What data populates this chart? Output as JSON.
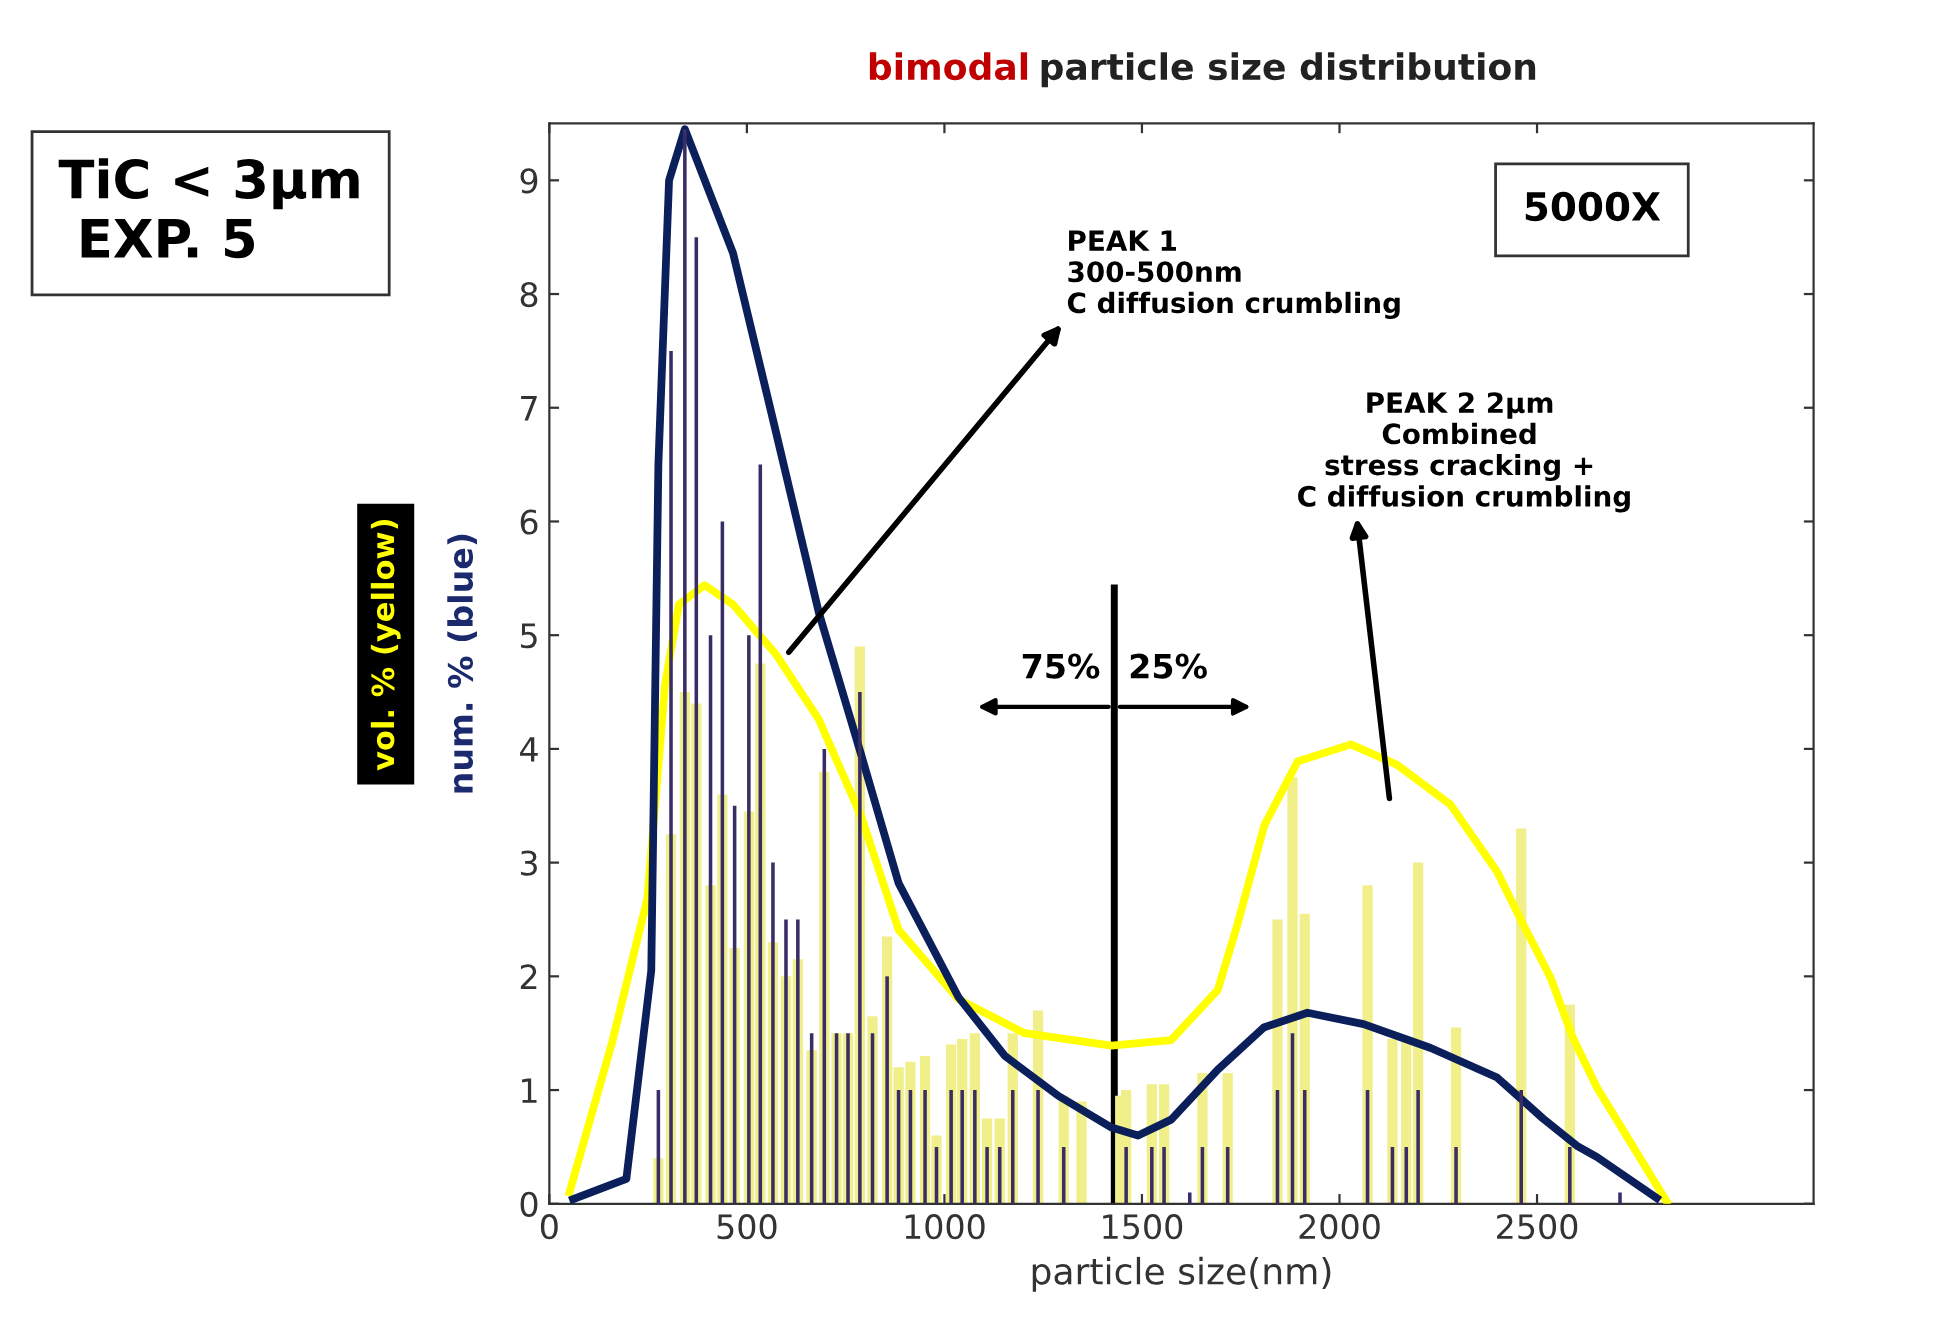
{
  "chart_data": {
    "type": "bar",
    "title": "bimodal particle size distribution",
    "xlabel": "particle size(nm)",
    "ylabel": "num. % (blue)",
    "x": [
      276,
      308,
      343,
      372,
      408,
      438,
      469,
      505,
      534,
      566,
      599,
      629,
      664,
      696,
      727,
      756,
      786,
      818,
      855,
      884,
      914,
      951,
      980,
      1017,
      1045,
      1077,
      1108,
      1140,
      1173,
      1237,
      1302,
      1347,
      1445,
      1460,
      1525,
      1556,
      1621,
      1653,
      1717,
      1843,
      1881,
      1912,
      2071,
      2134,
      2169,
      2199,
      2295,
      2460,
      2583,
      2710
    ],
    "series": [
      {
        "color": "#f1ef8a",
        "values": [
          0.4,
          3.25,
          4.5,
          4.4,
          2.8,
          3.6,
          2.25,
          3.45,
          4.75,
          2.3,
          2.0,
          2.15,
          1.35,
          3.8,
          1.5,
          1.5,
          4.9,
          1.65,
          2.35,
          1.2,
          1.25,
          1.3,
          0.6,
          1.4,
          1.45,
          1.5,
          0.75,
          0.75,
          1.5,
          1.7,
          0.95,
          0.9,
          0.95,
          1.0,
          1.05,
          1.05,
          null,
          1.15,
          1.15,
          2.5,
          3.75,
          2.55,
          2.8,
          1.45,
          1.45,
          3.0,
          1.55,
          3.3,
          1.75,
          null
        ]
      },
      {
        "color": "#3a2d66",
        "values": [
          1.0,
          7.5,
          9.45,
          8.5,
          5.0,
          6.0,
          3.5,
          5.0,
          6.5,
          3.0,
          2.5,
          2.5,
          1.5,
          4.0,
          1.5,
          1.5,
          4.5,
          1.5,
          2.0,
          1.0,
          1.0,
          1.0,
          0.5,
          1.0,
          1.0,
          1.0,
          0.5,
          0.5,
          1.0,
          1.0,
          0.5,
          null,
          null,
          0.5,
          0.5,
          0.5,
          0.1,
          0.5,
          0.5,
          1.0,
          1.5,
          1.0,
          1.0,
          0.5,
          0.5,
          1.0,
          0.5,
          1.0,
          0.5,
          0.1
        ]
      },
      {
        "type": "line",
        "color": "#ffff00",
        "x": [
          51,
          159,
          248,
          293,
          328,
          393,
          465,
          574,
          682,
          790,
          884,
          1035,
          1203,
          1423,
          1574,
          1692,
          1742,
          1810,
          1894,
          2029,
          2146,
          2281,
          2399,
          2466,
          2534,
          2592,
          2652,
          2828
        ],
        "values": [
          0.1,
          1.42,
          2.68,
          4.57,
          5.27,
          5.44,
          5.27,
          4.83,
          4.26,
          3.4,
          2.41,
          1.8,
          1.5,
          1.39,
          1.44,
          1.88,
          2.46,
          3.33,
          3.89,
          4.04,
          3.86,
          3.51,
          2.92,
          2.45,
          1.99,
          1.45,
          1.02,
          0.02
        ]
      },
      {
        "type": "line",
        "color": "#0b1f5b",
        "x": [
          60,
          195,
          258,
          276,
          303,
          343,
          465,
          574,
          682,
          790,
          884,
          1035,
          1153,
          1288,
          1423,
          1490,
          1574,
          1692,
          1808,
          1919,
          2061,
          2231,
          2399,
          2515,
          2601,
          2652,
          2803
        ],
        "values": [
          0.04,
          0.22,
          2.05,
          6.5,
          9.0,
          9.45,
          8.36,
          6.78,
          5.2,
          3.94,
          2.82,
          1.82,
          1.3,
          0.95,
          0.67,
          0.6,
          0.74,
          1.18,
          1.55,
          1.68,
          1.58,
          1.37,
          1.11,
          0.75,
          0.51,
          0.41,
          0.05
        ]
      }
    ],
    "xlim": [
      0,
      3200
    ],
    "xticks": [
      0,
      500,
      1000,
      1500,
      2000,
      2500
    ],
    "ylim": [
      0,
      9.5
    ],
    "yticks": [
      0,
      1,
      2,
      3,
      4,
      5,
      6,
      7,
      8,
      9
    ],
    "grid": false,
    "ref_lines": [
      {
        "axis": "x",
        "value": 1430,
        "color": "#000000"
      }
    ],
    "annotations": [
      "TiC < 3µm\n EXP. 5",
      "5000X",
      {
        "text": "PEAK 1\n300-500nm\nC diffusion crumbling",
        "x": 606,
        "y": 4.85
      },
      "PEAK 2 2µm\nCombined\nstress cracking +\n C diffusion crumbling",
      "75%",
      "25%",
      "vol. % (yellow)"
    ]
  }
}
